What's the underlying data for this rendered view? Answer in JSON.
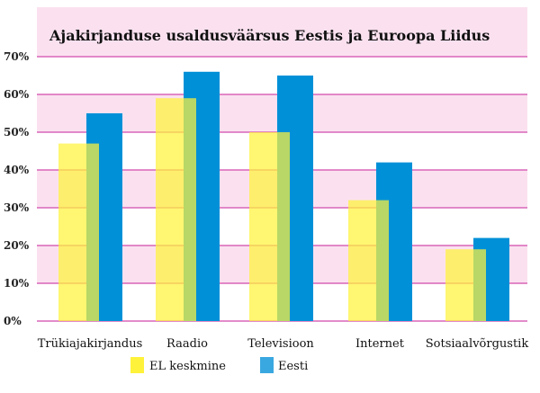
{
  "chart_data": {
    "type": "bar",
    "title": "Ajakirjanduse usaldusväärsus Eestis ja Euroopa Liidus",
    "xlabel": "",
    "ylabel": "",
    "categories": [
      "Trükiajakirjandus",
      "Raadio",
      "Televisioon",
      "Internet",
      "Sotsiaalvõrgustik"
    ],
    "series": [
      {
        "name": "EL keskmine",
        "values": [
          47,
          59,
          50,
          32,
          19
        ],
        "color": "#fff23a"
      },
      {
        "name": "Eesti",
        "values": [
          55,
          66,
          65,
          42,
          22
        ],
        "color": "#0090d8"
      }
    ],
    "ylim": [
      0,
      70
    ],
    "yticks": [
      "0%",
      "10%",
      "20%",
      "30%",
      "40%",
      "50%",
      "60%",
      "70%"
    ],
    "grid": true,
    "legend_position": "bottom",
    "colors": {
      "band": "#fbe1f0",
      "gridline": "#d866b8"
    }
  }
}
